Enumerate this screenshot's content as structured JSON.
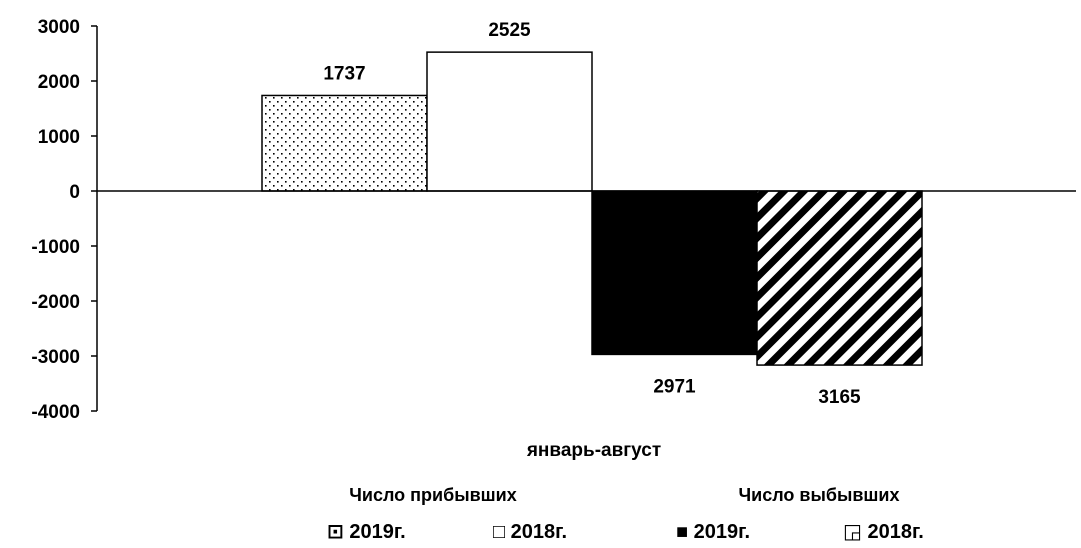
{
  "chart_data": {
    "type": "bar",
    "title": "",
    "xlabel": "январь-август",
    "ylabel": "",
    "ylim": [
      -4000,
      3000
    ],
    "yticks": [
      3000,
      2000,
      1000,
      0,
      -1000,
      -2000,
      -3000,
      -4000
    ],
    "grid": false,
    "legend_position": "bottom",
    "group_labels": [
      "Число прибывших",
      "Число выбывших"
    ],
    "series": [
      {
        "name": "2019г.",
        "group": "Число прибывших",
        "value": 1737,
        "label": "1737",
        "pattern": "dots",
        "legend_marker": "⊡"
      },
      {
        "name": "2018г.",
        "group": "Число прибывших",
        "value": 2525,
        "label": "2525",
        "pattern": "none",
        "legend_marker": "□"
      },
      {
        "name": "2019г.",
        "group": "Число выбывших",
        "value": -2971,
        "label": "2971",
        "pattern": "solid",
        "legend_marker": "■"
      },
      {
        "name": "2018г.",
        "group": "Число выбывших",
        "value": -3165,
        "label": "3165",
        "pattern": "diagonal",
        "legend_marker": "◲"
      }
    ]
  },
  "colors": {
    "bar_stroke": "#000000",
    "fill_light": "#ffffff",
    "fill_dark": "#000000"
  }
}
